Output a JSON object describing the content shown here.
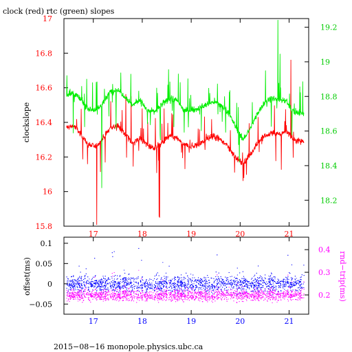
{
  "chart_data": [
    {
      "type": "line",
      "title": "clock (red) rtc (green) slopes",
      "xlabel": "",
      "ylabel": "clockslope",
      "y2label": "",
      "xlim": [
        16.4,
        21.4
      ],
      "ylim": [
        15.8,
        17.0
      ],
      "y2lim": [
        18.05,
        19.25
      ],
      "x_ticks": [
        "17",
        "18",
        "19",
        "20",
        "21"
      ],
      "y_ticks": [
        "15.8",
        "16",
        "16.2",
        "16.4",
        "16.6",
        "16.8",
        "17"
      ],
      "y2_ticks": [
        "18.2",
        "18.4",
        "18.6",
        "18.8",
        "19",
        "19.2"
      ],
      "colors": {
        "clock": "#ff0000",
        "rtc": "#00ee00",
        "axis_left": "#ff0000",
        "axis_right": "#00cc00"
      },
      "series": [
        {
          "name": "clock",
          "axis": "left",
          "x": [
            16.45,
            16.6,
            16.75,
            16.9,
            17.05,
            17.2,
            17.35,
            17.5,
            17.65,
            17.8,
            17.95,
            18.1,
            18.25,
            18.4,
            18.55,
            18.7,
            18.85,
            19.0,
            19.15,
            19.3,
            19.45,
            19.6,
            19.75,
            19.9,
            20.05,
            20.2,
            20.35,
            20.5,
            20.65,
            20.8,
            20.95,
            21.1,
            21.3
          ],
          "values": [
            16.37,
            16.38,
            16.33,
            16.27,
            16.26,
            16.31,
            16.37,
            16.38,
            16.33,
            16.28,
            16.31,
            16.27,
            16.25,
            16.28,
            16.32,
            16.31,
            16.27,
            16.26,
            16.27,
            16.3,
            16.32,
            16.3,
            16.26,
            16.2,
            16.16,
            16.21,
            16.28,
            16.32,
            16.34,
            16.33,
            16.35,
            16.3,
            16.29
          ]
        },
        {
          "name": "rtc",
          "axis": "right",
          "x": [
            16.45,
            16.6,
            16.75,
            16.9,
            17.05,
            17.2,
            17.35,
            17.5,
            17.65,
            17.8,
            17.95,
            18.1,
            18.25,
            18.4,
            18.55,
            18.7,
            18.85,
            19.0,
            19.15,
            19.3,
            19.45,
            19.6,
            19.75,
            19.9,
            20.05,
            20.2,
            20.35,
            20.5,
            20.65,
            20.8,
            20.95,
            21.1,
            21.3
          ],
          "values": [
            18.81,
            18.82,
            18.78,
            18.73,
            18.72,
            18.76,
            18.83,
            18.84,
            18.8,
            18.75,
            18.78,
            18.72,
            18.71,
            18.75,
            18.79,
            18.78,
            18.72,
            18.72,
            18.73,
            18.75,
            18.77,
            18.75,
            18.71,
            18.63,
            18.55,
            18.61,
            18.7,
            18.77,
            18.79,
            18.78,
            18.77,
            18.71,
            18.7
          ]
        }
      ]
    },
    {
      "type": "scatter",
      "xlabel": "",
      "ylabel": "offset(ms)",
      "y2label": "rnd−trip(ms)",
      "xlim": [
        16.4,
        21.4
      ],
      "ylim": [
        -0.075,
        0.115
      ],
      "y2lim": [
        0.115,
        0.455
      ],
      "x_ticks": [
        "17",
        "18",
        "19",
        "20",
        "21"
      ],
      "y_ticks": [
        "−0.05",
        "0",
        "0.05",
        "0.1"
      ],
      "y2_ticks": [
        "0.2",
        "0.3",
        "0.4"
      ],
      "colors": {
        "offset": "#0000ff",
        "rnd_trip": "#ff00ff",
        "axis_left": "#000000",
        "axis_right": "#ff00ff",
        "x_tick": "#0000ff"
      },
      "series": [
        {
          "name": "offset",
          "axis": "left",
          "x_range": [
            16.45,
            21.3
          ],
          "center": 0.0,
          "spread": 0.02
        },
        {
          "name": "rnd_trip",
          "axis": "right",
          "x_range": [
            16.45,
            21.3
          ],
          "center": 0.2,
          "spread": 0.025
        }
      ]
    }
  ],
  "footer": "2015−08−16 monopole.physics.ubc.ca"
}
